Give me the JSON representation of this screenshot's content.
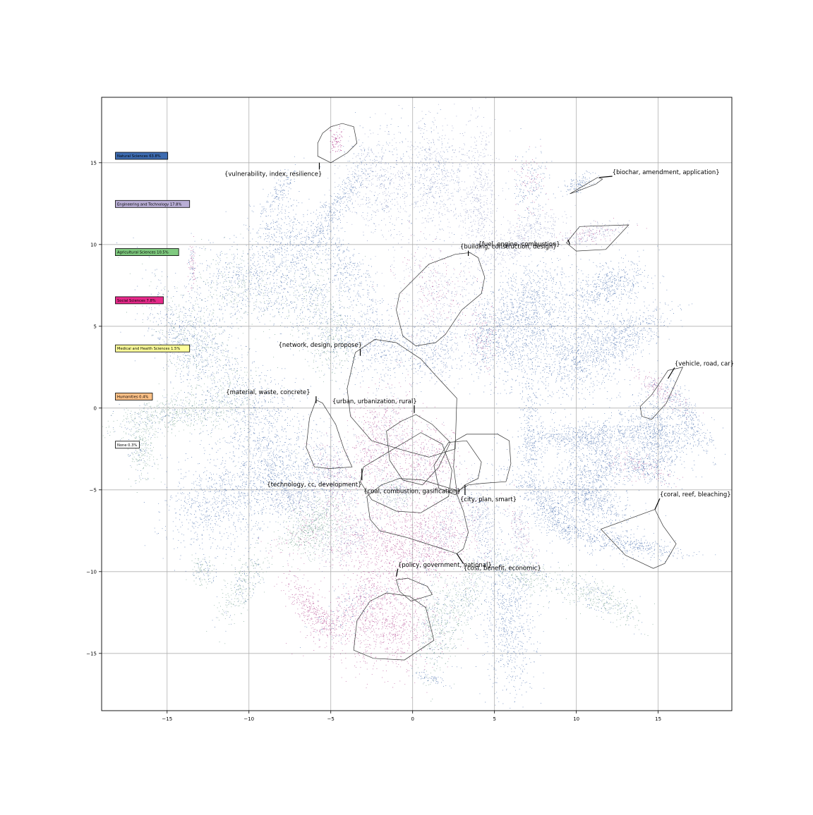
{
  "chart_data": {
    "type": "scatter",
    "title": "",
    "xlabel": "",
    "ylabel": "",
    "xlim": [
      -19,
      19.5
    ],
    "ylim": [
      -18.5,
      19
    ],
    "grid": true,
    "xticks": [
      -15,
      -10,
      -5,
      0,
      5,
      10,
      15
    ],
    "yticks": [
      -15,
      -10,
      -5,
      0,
      5,
      10,
      15
    ],
    "xtick_labels": [
      "−15",
      "−10",
      "−5",
      "0",
      "5",
      "10",
      "15"
    ],
    "ytick_labels": [
      "−15",
      "−10",
      "−5",
      "0",
      "5",
      "10",
      "15"
    ],
    "legend_position": "upper-left",
    "legend": [
      {
        "label": "Natural Sciences 63.8%",
        "color": "#3d6bb0"
      },
      {
        "label": "Engineering and Technology 17.8%",
        "color": "#b9aed6"
      },
      {
        "label": "Agricultural Sciences 10.5%",
        "color": "#7fc97f"
      },
      {
        "label": "Social Sciences 7.8%",
        "color": "#e7298a"
      },
      {
        "label": "Medical and Health Sciences 1.5%",
        "color": "#ffff99"
      },
      {
        "label": "Humanities 0.4%",
        "color": "#fdc086"
      },
      {
        "label": "None 0.3%",
        "color": "#ffffff"
      }
    ],
    "clusters": [
      {
        "label": "{vulnerability, index, resilience}",
        "text_at": [
          -11.5,
          14.2
        ],
        "arrow_to": [
          -5.7,
          15.0
        ],
        "hull": [
          [
            -5.8,
            15.4
          ],
          [
            -5.0,
            15.0
          ],
          [
            -4.0,
            15.6
          ],
          [
            -3.4,
            16.2
          ],
          [
            -3.6,
            17.2
          ],
          [
            -4.3,
            17.4
          ],
          [
            -5.0,
            17.2
          ],
          [
            -5.5,
            16.8
          ],
          [
            -5.8,
            16.2
          ]
        ],
        "color": "#b13c8e",
        "blob": [
          -4.7,
          16.3,
          0.35,
          0.6,
          60
        ],
        "n": 70
      }
    ],
    "annotations": [
      {
        "label": "{biochar, amendment, application}",
        "text_at": [
          12.2,
          14.3
        ],
        "arrow_to": [
          11.4,
          14.1
        ],
        "hull": [
          [
            9.6,
            13.1
          ],
          [
            11.3,
            14.1
          ],
          [
            11.6,
            14.0
          ],
          [
            11.2,
            13.7
          ],
          [
            9.9,
            13.2
          ]
        ]
      },
      {
        "label": "{fuel, engine, combustion}",
        "text_at": [
          4.0,
          9.9
        ],
        "arrow_to": [
          9.6,
          10.0
        ],
        "hull": [
          [
            9.4,
            10.1
          ],
          [
            10.2,
            11.1
          ],
          [
            13.2,
            11.2
          ],
          [
            11.8,
            9.7
          ],
          [
            10.0,
            9.6
          ]
        ]
      },
      {
        "label": "{building, construction, design}",
        "text_at": [
          2.9,
          9.75
        ],
        "arrow_to": [
          3.4,
          9.3
        ],
        "hull": [
          [
            3.5,
            9.5
          ],
          [
            4.0,
            9.2
          ],
          [
            4.4,
            8.0
          ],
          [
            4.2,
            7.0
          ],
          [
            3.0,
            6.0
          ],
          [
            2.0,
            4.5
          ],
          [
            1.4,
            4.0
          ],
          [
            0.2,
            3.8
          ],
          [
            -0.6,
            4.4
          ],
          [
            -1.0,
            6.0
          ],
          [
            -0.8,
            7.0
          ],
          [
            1.0,
            8.8
          ],
          [
            2.6,
            9.4
          ]
        ]
      },
      {
        "label": "{vehicle, road, car}",
        "text_at": [
          16.0,
          2.6
        ],
        "arrow_to": [
          15.6,
          1.8
        ],
        "hull": [
          [
            15.6,
            2.3
          ],
          [
            16.5,
            2.5
          ],
          [
            15.5,
            0.3
          ],
          [
            14.6,
            -0.7
          ],
          [
            14.0,
            -0.5
          ],
          [
            13.9,
            0.1
          ],
          [
            14.6,
            0.8
          ]
        ]
      },
      {
        "label": "{network, design, propose}",
        "text_at": [
          -8.2,
          3.75
        ],
        "arrow_to": [
          -3.2,
          3.2
        ],
        "hull": [
          [
            -3.5,
            3.4
          ],
          [
            -2.3,
            4.2
          ],
          [
            -1.0,
            4.0
          ],
          [
            0.5,
            3.0
          ],
          [
            1.4,
            2.0
          ],
          [
            2.7,
            0.6
          ],
          [
            2.6,
            -2.5
          ],
          [
            1.0,
            -3.0
          ],
          [
            -0.5,
            -2.6
          ],
          [
            -2.5,
            -2.0
          ],
          [
            -3.8,
            -0.5
          ],
          [
            -4.0,
            1.2
          ]
        ]
      },
      {
        "label": "{material, waste, concrete}",
        "text_at": [
          -11.4,
          0.85
        ],
        "arrow_to": [
          -5.9,
          0.3
        ],
        "hull": [
          [
            -5.9,
            0.5
          ],
          [
            -5.5,
            0.3
          ],
          [
            -4.7,
            -1.0
          ],
          [
            -4.2,
            -2.5
          ],
          [
            -3.7,
            -3.6
          ],
          [
            -5.1,
            -3.7
          ],
          [
            -6.0,
            -3.6
          ],
          [
            -6.5,
            -2.4
          ],
          [
            -6.3,
            -0.6
          ]
        ]
      },
      {
        "label": "{urban, urbanization, rural}",
        "text_at": [
          -4.9,
          0.3
        ],
        "arrow_to": [
          0.1,
          -0.3
        ],
        "hull": [
          [
            0.2,
            -0.4
          ],
          [
            1.2,
            -1.0
          ],
          [
            2.3,
            -2.1
          ],
          [
            1.6,
            -3.6
          ],
          [
            0.6,
            -4.7
          ],
          [
            -0.6,
            -4.4
          ],
          [
            -1.4,
            -3.2
          ],
          [
            -1.6,
            -1.4
          ],
          [
            -0.7,
            -0.8
          ]
        ]
      },
      {
        "label": "{technology, cc, development}",
        "text_at": [
          -8.9,
          -4.8
        ],
        "arrow_to": [
          -3.1,
          -3.7
        ],
        "hull": [
          [
            -3.0,
            -3.6
          ],
          [
            -2.0,
            -3.0
          ],
          [
            0.5,
            -1.5
          ],
          [
            1.8,
            -2.2
          ],
          [
            2.4,
            -3.8
          ],
          [
            2.2,
            -5.4
          ],
          [
            0.5,
            -6.4
          ],
          [
            -1.0,
            -6.3
          ],
          [
            -2.5,
            -5.6
          ],
          [
            -3.2,
            -4.5
          ]
        ]
      },
      {
        "label": "{coal, combustion, gasification}",
        "text_at": [
          -3.0,
          -5.2
        ],
        "arrow_to": [
          2.7,
          -5.3
        ],
        "hull": [
          [
            2.7,
            -5.1
          ],
          [
            3.4,
            -4.7
          ],
          [
            4.3,
            -4.6
          ],
          [
            5.7,
            -4.5
          ],
          [
            6.0,
            -3.4
          ],
          [
            5.9,
            -2.0
          ],
          [
            5.2,
            -1.6
          ],
          [
            3.3,
            -1.6
          ],
          [
            2.6,
            -2.0
          ],
          [
            2.5,
            -3.6
          ]
        ]
      },
      {
        "label": "{city, plan, smart}",
        "text_at": [
          2.9,
          -5.7
        ],
        "arrow_to": [
          3.2,
          -4.7
        ],
        "hull": [
          [
            3.2,
            -4.7
          ],
          [
            4.0,
            -4.3
          ],
          [
            4.2,
            -3.3
          ],
          [
            3.3,
            -2.0
          ],
          [
            2.2,
            -2.1
          ],
          [
            1.3,
            -3.5
          ],
          [
            1.6,
            -4.9
          ],
          [
            2.6,
            -5.3
          ]
        ]
      },
      {
        "label": "{coral, reef, bleaching}",
        "text_at": [
          15.1,
          -5.4
        ],
        "arrow_to": [
          14.8,
          -6.2
        ],
        "hull": [
          [
            14.8,
            -6.2
          ],
          [
            15.3,
            -7.2
          ],
          [
            16.1,
            -8.3
          ],
          [
            15.4,
            -9.5
          ],
          [
            14.7,
            -9.8
          ],
          [
            13.0,
            -9.0
          ],
          [
            11.5,
            -7.4
          ]
        ]
      },
      {
        "label": "{policy, government, national}",
        "text_at": [
          -0.9,
          -9.7
        ],
        "arrow_to": [
          -1.0,
          -10.3
        ],
        "hull": [
          [
            -1.0,
            -10.5
          ],
          [
            -0.3,
            -10.4
          ],
          [
            0.9,
            -10.9
          ],
          [
            1.2,
            -11.4
          ],
          [
            -0.1,
            -11.8
          ],
          [
            -0.8,
            -11.2
          ]
        ]
      },
      {
        "label": "{cost, benefit, economic}",
        "text_at": [
          3.1,
          -9.9
        ],
        "arrow_to": [
          2.7,
          -8.9
        ],
        "hull": [
          [
            2.7,
            -8.9
          ],
          [
            1.5,
            -8.5
          ],
          [
            -0.4,
            -7.9
          ],
          [
            -2.0,
            -7.5
          ],
          [
            -2.6,
            -6.8
          ],
          [
            -2.8,
            -5.4
          ],
          [
            -1.9,
            -4.7
          ],
          [
            -0.8,
            -4.3
          ],
          [
            0.6,
            -4.4
          ],
          [
            2.6,
            -5.0
          ],
          [
            3.1,
            -6.3
          ],
          [
            3.4,
            -7.6
          ],
          [
            3.1,
            -8.6
          ]
        ]
      },
      {
        "label": "",
        "text_at": null,
        "arrow_to": null,
        "hull": [
          [
            -3.6,
            -14.8
          ],
          [
            -2.4,
            -15.3
          ],
          [
            -0.5,
            -15.4
          ],
          [
            1.3,
            -14.2
          ],
          [
            0.8,
            -12.2
          ],
          [
            -0.2,
            -11.5
          ],
          [
            -1.6,
            -11.3
          ],
          [
            -2.6,
            -11.8
          ],
          [
            -3.4,
            -13.0
          ]
        ]
      }
    ]
  }
}
